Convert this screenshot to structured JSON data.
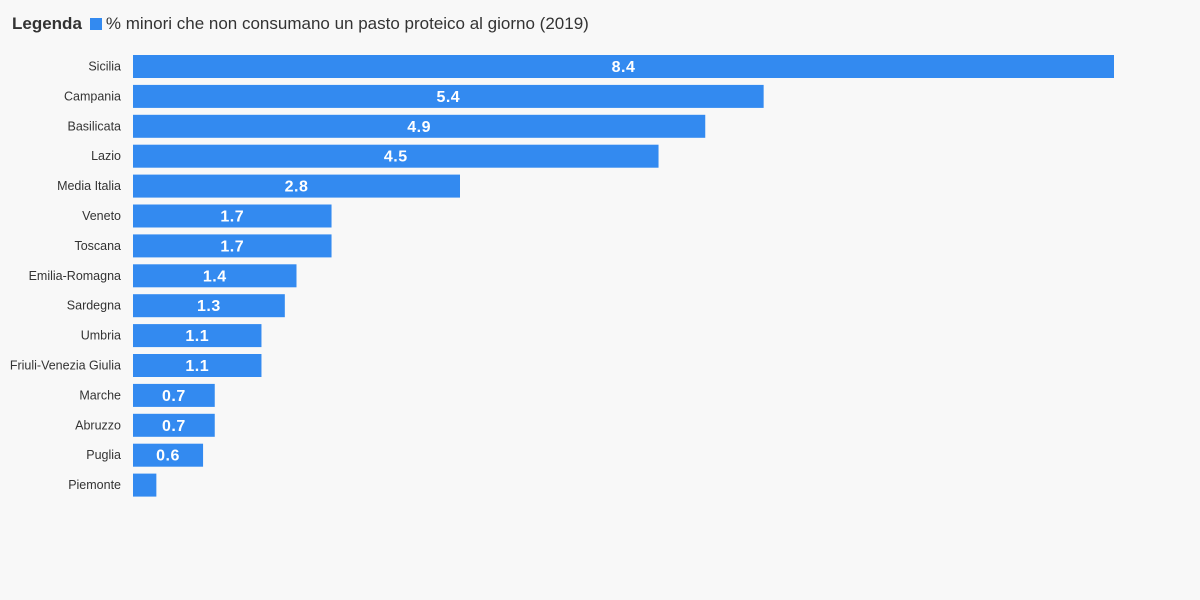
{
  "legend": {
    "title": "Legenda",
    "series_label": "% minori che non consumano un pasto proteico al giorno (2019)"
  },
  "colors": {
    "bar": "#338af0",
    "background": "#f8f8f8",
    "text": "#333333"
  },
  "chart_data": {
    "type": "bar",
    "orientation": "horizontal",
    "categories": [
      "Sicilia",
      "Campania",
      "Basilicata",
      "Lazio",
      "Media Italia",
      "Veneto",
      "Toscana",
      "Emilia-Romagna",
      "Sardegna",
      "Umbria",
      "Friuli-Venezia Giulia",
      "Marche",
      "Abruzzo",
      "Puglia",
      "Piemonte"
    ],
    "series": [
      {
        "name": "% minori che non consumano un pasto proteico al giorno (2019)",
        "values": [
          8.4,
          5.4,
          4.9,
          4.5,
          2.8,
          1.7,
          1.7,
          1.4,
          1.3,
          1.1,
          1.1,
          0.7,
          0.7,
          0.6,
          0.2
        ]
      }
    ],
    "value_labels": [
      "8.4",
      "5.4",
      "4.9",
      "4.5",
      "2.8",
      "1.7",
      "1.7",
      "1.4",
      "1.3",
      "1.1",
      "1.1",
      "0.7",
      "0.7",
      "0.6",
      ""
    ],
    "xlim": [
      0,
      8.4
    ],
    "grid": false,
    "legend_position": "top-left"
  }
}
